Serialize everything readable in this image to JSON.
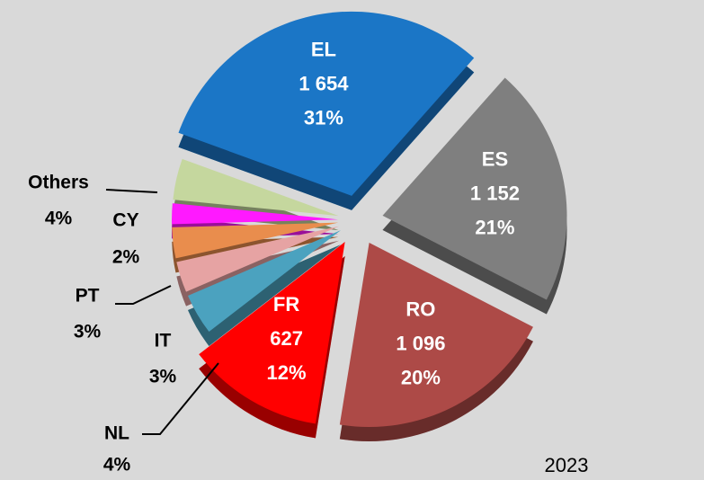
{
  "chart_data": {
    "type": "pie",
    "categories": [
      "EL",
      "ES",
      "RO",
      "FR",
      "NL",
      "IT",
      "PT",
      "CY",
      "Others"
    ],
    "values": [
      31,
      21,
      20,
      12,
      4,
      3,
      3,
      2,
      4
    ],
    "value_labels": [
      "31%",
      "21%",
      "20%",
      "12%",
      "4%",
      "3%",
      "3%",
      "2%",
      "4%"
    ],
    "amount_labels": [
      "1 654",
      "1 152",
      "1 096",
      "627",
      null,
      null,
      null,
      null,
      null
    ],
    "colors": [
      "#1b76c6",
      "#7f7f7f",
      "#ad4a47",
      "#ff0000",
      "#4ba2bf",
      "#e6a3a3",
      "#e98d4d",
      "#ff19ff",
      "#c5d79e"
    ],
    "subtitle": "2023"
  }
}
